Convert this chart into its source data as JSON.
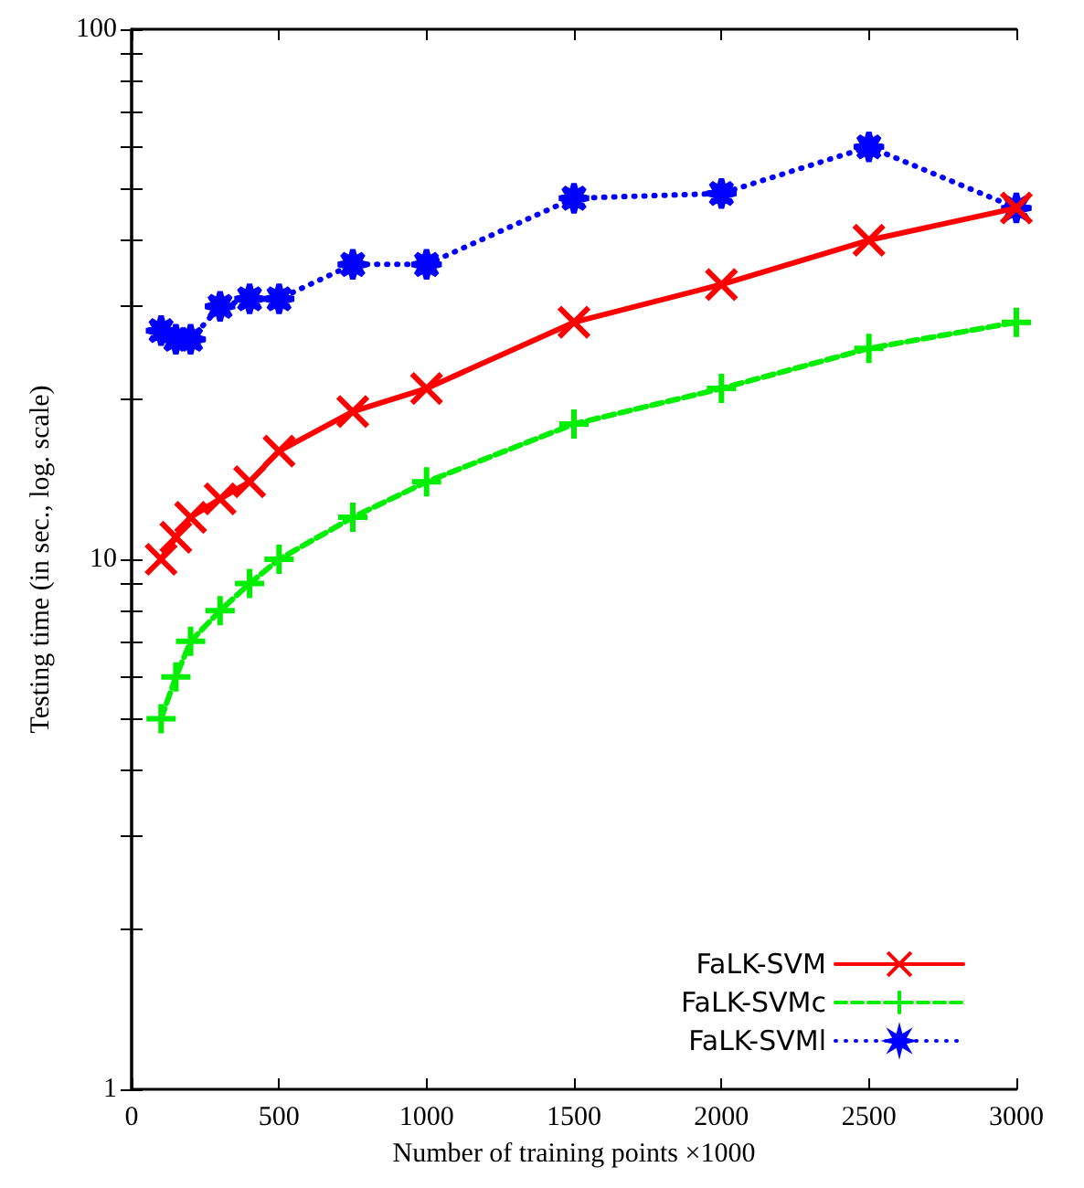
{
  "chart_data": {
    "type": "line",
    "xlabel": "Number of training points ×1000",
    "ylabel": "Testing time (in sec., log. scale)",
    "x": [
      100,
      150,
      200,
      300,
      400,
      500,
      750,
      1000,
      1500,
      2000,
      2500,
      3000
    ],
    "series": [
      {
        "name": "FaLK-SVM",
        "color": "#ff0000",
        "marker": "cross",
        "line_style": "solid",
        "values": [
          10,
          11,
          12,
          13,
          14,
          16,
          19,
          21,
          28,
          33,
          40,
          46
        ]
      },
      {
        "name": "FaLK-SVMc",
        "color": "#00ee00",
        "marker": "plus",
        "line_style": "dashed",
        "values": [
          5,
          6,
          7,
          8,
          9,
          10,
          12,
          14,
          18,
          21,
          25,
          28
        ]
      },
      {
        "name": "FaLK-SVMl",
        "color": "#0000ff",
        "marker": "star",
        "line_style": "dotted",
        "values": [
          27,
          26,
          26,
          30,
          31,
          31,
          36,
          36,
          48,
          49,
          60,
          46
        ]
      }
    ],
    "log": "y",
    "xlim": [
      0,
      3000
    ],
    "xticks": [
      0,
      500,
      1000,
      1500,
      2000,
      2500,
      3000
    ],
    "ylim": [
      1,
      100
    ],
    "yticks": [
      1,
      {
        "value": 2,
        "label": null
      },
      {
        "value": 3,
        "label": null
      },
      {
        "value": 4,
        "label": null
      },
      {
        "value": 5,
        "label": null
      },
      {
        "value": 6,
        "label": null
      },
      {
        "value": 7,
        "label": null
      },
      {
        "value": 8,
        "label": null
      },
      {
        "value": 9,
        "label": null
      },
      10,
      {
        "value": 20,
        "label": null
      },
      {
        "value": 30,
        "label": null
      },
      {
        "value": 40,
        "label": null
      },
      {
        "value": 50,
        "label": null
      },
      {
        "value": 60,
        "label": null
      },
      {
        "value": 70,
        "label": null
      },
      {
        "value": 80,
        "label": null
      },
      {
        "value": 90,
        "label": null
      },
      100
    ],
    "grid": false,
    "legend": "bottom right"
  }
}
